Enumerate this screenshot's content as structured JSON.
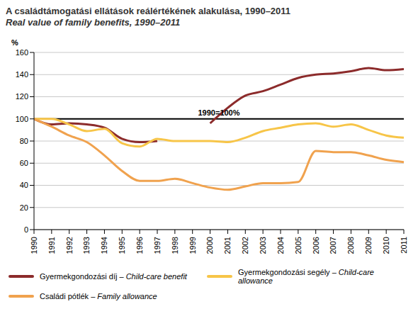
{
  "chart_data": {
    "type": "line",
    "title": "A családtámogatási ellátások reálértékének alakulása, 1990–2011",
    "subtitle": "Real value of family benefits, 1990–2011",
    "y_label": "%",
    "x": [
      1990,
      1991,
      1992,
      1993,
      1994,
      1995,
      1996,
      1997,
      1998,
      1999,
      2000,
      2001,
      2002,
      2003,
      2004,
      2005,
      2006,
      2007,
      2008,
      2009,
      2010,
      2011
    ],
    "xlim": [
      1990,
      2011
    ],
    "xticks": [
      1990,
      1991,
      1992,
      1993,
      1994,
      1995,
      1996,
      1997,
      1998,
      1999,
      2000,
      2001,
      2002,
      2003,
      2004,
      2005,
      2006,
      2007,
      2008,
      2009,
      2010,
      2011
    ],
    "ylim": [
      0,
      160
    ],
    "yticks": [
      0,
      20,
      40,
      60,
      80,
      100,
      120,
      140,
      160
    ],
    "grid": true,
    "annotations": [
      {
        "text": "1990=100%",
        "y": 100
      }
    ],
    "series": [
      {
        "name": "Gyermekgondozási díj – Child-care benefit",
        "color": "#8c2b2b",
        "values": [
          100,
          95,
          96,
          95,
          92,
          82,
          79,
          80,
          null,
          null,
          96,
          110,
          121,
          125,
          131,
          137,
          140,
          141,
          143,
          146,
          144,
          145
        ]
      },
      {
        "name": "Gyermekgondozási segély – Child-care allowance",
        "color": "#f7c548",
        "values": [
          100,
          100,
          95,
          89,
          91,
          78,
          75,
          82,
          80,
          80,
          80,
          79,
          83,
          89,
          92,
          95,
          96,
          93,
          95,
          90,
          85,
          83
        ]
      },
      {
        "name": "Családi pótlék – Family allowance",
        "color": "#f0a24e",
        "values": [
          100,
          93,
          85,
          79,
          67,
          53,
          44,
          44,
          46,
          42,
          38,
          36,
          39,
          42,
          42,
          43,
          71,
          70,
          70,
          67,
          63,
          61
        ]
      }
    ]
  }
}
